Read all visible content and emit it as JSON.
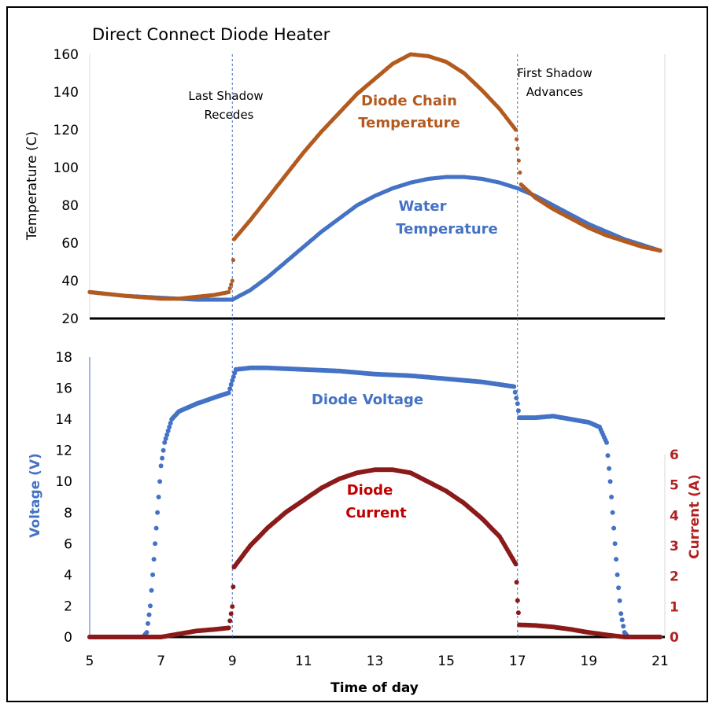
{
  "chart_data": [
    {
      "type": "scatter",
      "title": "Direct Connect Diode Heater",
      "ylabel": "Temperature (C)",
      "xlim": [
        5,
        21
      ],
      "ylim": [
        20,
        160
      ],
      "yticks": [
        20,
        40,
        60,
        80,
        100,
        120,
        140,
        160
      ],
      "annotations": [
        {
          "lines": [
            "Last Shadow",
            "Recedes"
          ],
          "x": 9
        },
        {
          "lines": [
            "First Shadow",
            "Advances"
          ],
          "x": 17
        }
      ],
      "vertical_markers": [
        9,
        17
      ],
      "series": [
        {
          "name": "Diode Chain Temperature",
          "label_lines": [
            "Diode Chain",
            "Temperature"
          ],
          "color": "#b35a1f",
          "points": [
            [
              5,
              34
            ],
            [
              6,
              32
            ],
            [
              7,
              30.5
            ],
            [
              7.5,
              30.5
            ],
            [
              8,
              31.5
            ],
            [
              8.5,
              32.5
            ],
            [
              8.9,
              34
            ],
            [
              9,
              40
            ],
            [
              9.05,
              62
            ],
            [
              9.5,
              72
            ],
            [
              10,
              84
            ],
            [
              10.5,
              96
            ],
            [
              11,
              108
            ],
            [
              11.5,
              119
            ],
            [
              12,
              129
            ],
            [
              12.5,
              139
            ],
            [
              13,
              147
            ],
            [
              13.5,
              155
            ],
            [
              14,
              160
            ],
            [
              14.5,
              159
            ],
            [
              15,
              156
            ],
            [
              15.5,
              150
            ],
            [
              16,
              141
            ],
            [
              16.5,
              131
            ],
            [
              16.95,
              120
            ],
            [
              17,
              110
            ],
            [
              17.1,
              91
            ],
            [
              17.5,
              84
            ],
            [
              18,
              78
            ],
            [
              18.5,
              73
            ],
            [
              19,
              68
            ],
            [
              19.5,
              64
            ],
            [
              20,
              61
            ],
            [
              20.5,
              58
            ],
            [
              21,
              56
            ]
          ]
        },
        {
          "name": "Water Temperature",
          "label_lines": [
            "Water",
            "Temperature"
          ],
          "color": "#4472c4",
          "points": [
            [
              5,
              34
            ],
            [
              6,
              32
            ],
            [
              7,
              31
            ],
            [
              8,
              30
            ],
            [
              9,
              30
            ],
            [
              9.5,
              35
            ],
            [
              10,
              42
            ],
            [
              10.5,
              50
            ],
            [
              11,
              58
            ],
            [
              11.5,
              66
            ],
            [
              12,
              73
            ],
            [
              12.5,
              80
            ],
            [
              13,
              85
            ],
            [
              13.5,
              89
            ],
            [
              14,
              92
            ],
            [
              14.5,
              94
            ],
            [
              15,
              95
            ],
            [
              15.5,
              95
            ],
            [
              16,
              94
            ],
            [
              16.5,
              92
            ],
            [
              17,
              89
            ],
            [
              17.5,
              85
            ],
            [
              18,
              80
            ],
            [
              18.5,
              75
            ],
            [
              19,
              70
            ],
            [
              19.5,
              66
            ],
            [
              20,
              62
            ],
            [
              20.5,
              59
            ],
            [
              21,
              56
            ]
          ]
        }
      ]
    },
    {
      "type": "scatter",
      "xlabel": "Time of day",
      "ylabel": "Voltage (V)",
      "y2label": "Current (A)",
      "xlim": [
        5,
        21
      ],
      "xticks": [
        5,
        7,
        9,
        11,
        13,
        15,
        17,
        19,
        21
      ],
      "ylim": [
        0,
        18
      ],
      "yticks": [
        0,
        2,
        4,
        6,
        8,
        10,
        12,
        14,
        16,
        18
      ],
      "y2lim": [
        0,
        6
      ],
      "y2ticks": [
        0,
        1,
        2,
        3,
        4,
        5,
        6
      ],
      "series": [
        {
          "name": "Diode Voltage",
          "label_lines": [
            "Diode Voltage"
          ],
          "color": "#4472c4",
          "axis": "left",
          "points": [
            [
              5,
              0
            ],
            [
              6,
              0
            ],
            [
              6.5,
              0
            ],
            [
              6.6,
              0.3
            ],
            [
              6.7,
              2
            ],
            [
              6.8,
              5
            ],
            [
              6.9,
              8
            ],
            [
              7,
              11
            ],
            [
              7.1,
              12.5
            ],
            [
              7.3,
              14
            ],
            [
              7.5,
              14.5
            ],
            [
              8,
              15
            ],
            [
              8.5,
              15.4
            ],
            [
              8.9,
              15.7
            ],
            [
              9,
              16.5
            ],
            [
              9.1,
              17.2
            ],
            [
              9.5,
              17.3
            ],
            [
              10,
              17.3
            ],
            [
              11,
              17.2
            ],
            [
              12,
              17.1
            ],
            [
              13,
              16.9
            ],
            [
              14,
              16.8
            ],
            [
              15,
              16.6
            ],
            [
              16,
              16.4
            ],
            [
              16.9,
              16.1
            ],
            [
              17,
              15
            ],
            [
              17.05,
              14.1
            ],
            [
              17.5,
              14.1
            ],
            [
              18,
              14.2
            ],
            [
              18.5,
              14
            ],
            [
              19,
              13.8
            ],
            [
              19.3,
              13.5
            ],
            [
              19.5,
              12.5
            ],
            [
              19.6,
              10
            ],
            [
              19.7,
              7
            ],
            [
              19.8,
              4
            ],
            [
              19.9,
              1.5
            ],
            [
              20,
              0.3
            ],
            [
              20.1,
              0
            ],
            [
              21,
              0
            ]
          ]
        },
        {
          "name": "Diode Current",
          "label_lines": [
            "Diode",
            "Current"
          ],
          "color": "#8b1a1a",
          "axis": "right",
          "points": [
            [
              5,
              0
            ],
            [
              6,
              0
            ],
            [
              7,
              0
            ],
            [
              7.5,
              0.1
            ],
            [
              8,
              0.2
            ],
            [
              8.5,
              0.25
            ],
            [
              8.9,
              0.3
            ],
            [
              9,
              1
            ],
            [
              9.05,
              2.3
            ],
            [
              9.5,
              3
            ],
            [
              10,
              3.6
            ],
            [
              10.5,
              4.1
            ],
            [
              11,
              4.5
            ],
            [
              11.5,
              4.9
            ],
            [
              12,
              5.2
            ],
            [
              12.5,
              5.4
            ],
            [
              13,
              5.5
            ],
            [
              13.5,
              5.5
            ],
            [
              14,
              5.4
            ],
            [
              14.5,
              5.1
            ],
            [
              15,
              4.8
            ],
            [
              15.5,
              4.4
            ],
            [
              16,
              3.9
            ],
            [
              16.5,
              3.3
            ],
            [
              16.95,
              2.4
            ],
            [
              17,
              1.2
            ],
            [
              17.05,
              0.4
            ],
            [
              17.5,
              0.38
            ],
            [
              18,
              0.33
            ],
            [
              18.5,
              0.25
            ],
            [
              19,
              0.15
            ],
            [
              19.5,
              0.07
            ],
            [
              20,
              0
            ],
            [
              21,
              0
            ]
          ]
        }
      ]
    }
  ]
}
